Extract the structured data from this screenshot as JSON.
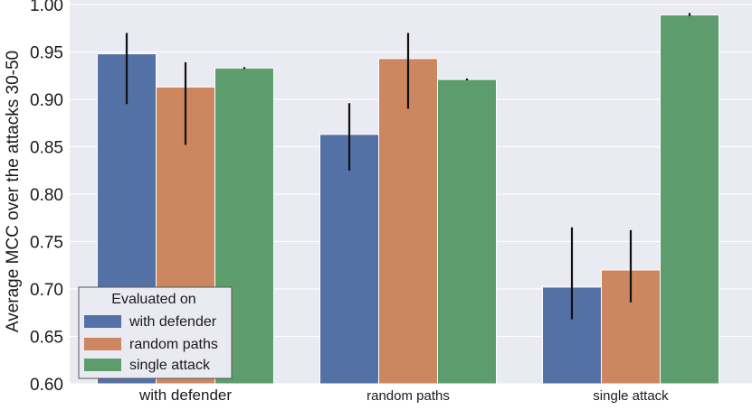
{
  "chart_data": {
    "type": "bar",
    "title": "",
    "xlabel": "",
    "ylabel": "Average MCC over the attacks 30-50",
    "ylim": [
      0.6,
      1.0
    ],
    "yticks": [
      "0.60",
      "0.65",
      "0.70",
      "0.75",
      "0.80",
      "0.85",
      "0.90",
      "0.95",
      "1.00"
    ],
    "categories": [
      "with defender",
      "random paths",
      "single attack"
    ],
    "series": [
      {
        "name": "with defender",
        "color": "#5471a5",
        "values": [
          0.948,
          0.863,
          0.702
        ],
        "err_low": [
          0.895,
          0.825,
          0.668
        ],
        "err_high": [
          0.97,
          0.896,
          0.765
        ]
      },
      {
        "name": "random paths",
        "color": "#cc8660",
        "values": [
          0.913,
          0.943,
          0.72
        ],
        "err_low": [
          0.852,
          0.89,
          0.686
        ],
        "err_high": [
          0.939,
          0.97,
          0.762
        ]
      },
      {
        "name": "single attack",
        "color": "#5c9c6d",
        "values": [
          0.933,
          0.921,
          0.989
        ],
        "err_low": [
          0.932,
          0.92,
          0.988
        ],
        "err_high": [
          0.934,
          0.922,
          0.991
        ]
      }
    ],
    "legend": {
      "title": "Evaluated on",
      "position": "lower-left",
      "entries": [
        "with defender",
        "random paths",
        "single attack"
      ]
    },
    "grid": true
  }
}
